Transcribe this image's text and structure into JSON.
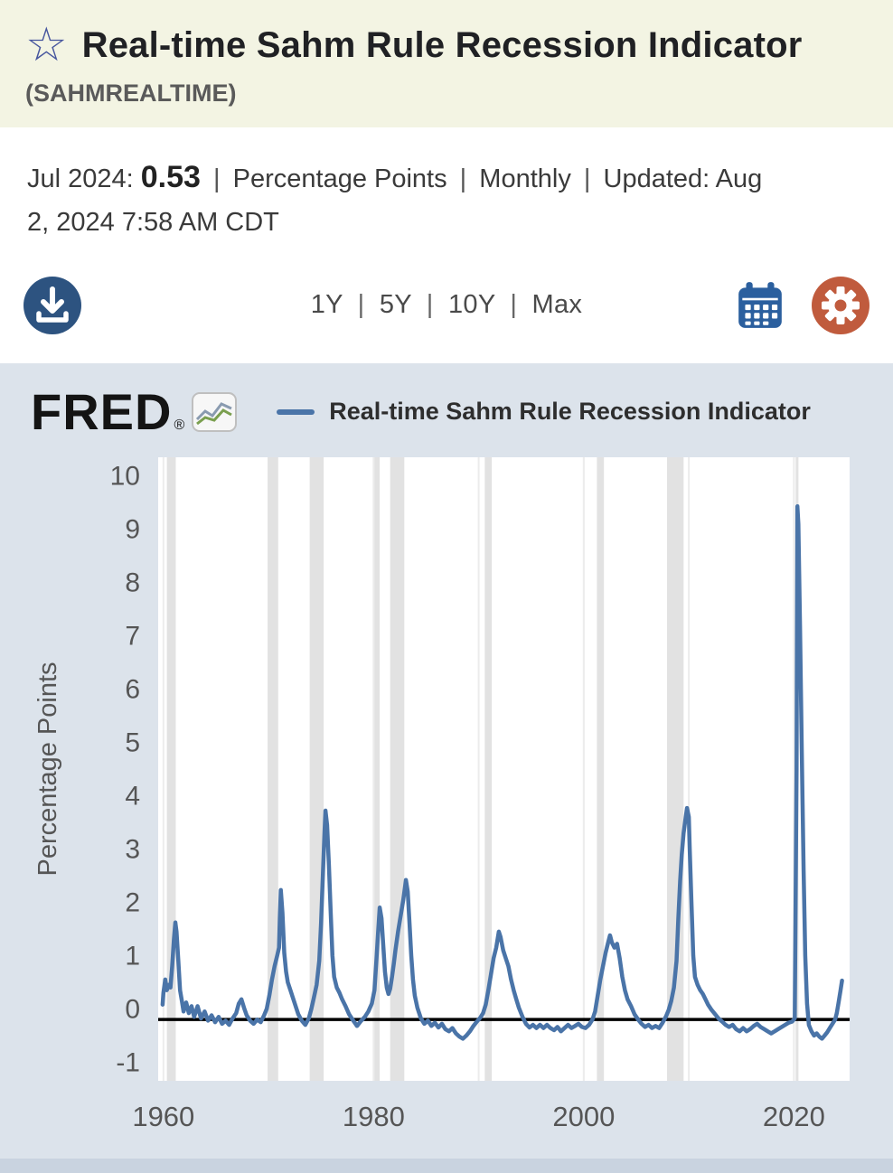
{
  "header": {
    "title": "Real-time Sahm Rule Recession Indicator",
    "series_id": "(SAHMREALTIME)"
  },
  "icons": {
    "favorite": "☆",
    "download": "download-arrow-into-tray",
    "calendar": "calendar-grid",
    "settings": "gear",
    "logo_chart": "zigzag-line-chart"
  },
  "observation": {
    "date_label": "Jul 2024:",
    "value": "0.53",
    "separator": "|",
    "units": "Percentage Points",
    "frequency": "Monthly",
    "updated_label": "Updated:",
    "updated_date": "Aug 2, 2024",
    "updated_time": "7:58 AM CDT"
  },
  "toolbar": {
    "ranges": [
      "1Y",
      "5Y",
      "10Y",
      "Max"
    ],
    "range_separator": "|"
  },
  "branding": {
    "logo_text": "FRED",
    "registered_mark": "®"
  },
  "colors": {
    "header_bg": "#f3f4e3",
    "chart_panel_bg": "#dce3eb",
    "line": "#4a74a8",
    "download_button": "#2d5380",
    "calendar_icon": "#2b5f9e",
    "settings_button": "#c05b3d",
    "recession_band": "#e2e2e2",
    "threshold_line": "#000000"
  },
  "chart_data": {
    "type": "line",
    "title": "Real-time Sahm Rule Recession Indicator",
    "ylabel": "Percentage Points",
    "xlabel": "",
    "x_ticks": [
      1960,
      1980,
      2000,
      2020
    ],
    "x_gridlines": [
      1960,
      1970,
      1980,
      1990,
      2000,
      2010,
      2020
    ],
    "y_ticks": [
      10,
      9,
      8,
      7,
      6,
      5,
      4,
      3,
      2,
      1,
      0,
      -1
    ],
    "xlim": [
      1959.5,
      2025.3
    ],
    "ylim": [
      -1.35,
      10.35
    ],
    "grid": "vertical-only",
    "legend_position": "top",
    "threshold_line": -0.2,
    "plot_bg": "#ffffff",
    "recession_color": "#e2e2e2",
    "gridline_color": "#ececec",
    "recessions": [
      [
        1960.33,
        1961.17
      ],
      [
        1969.92,
        1970.92
      ],
      [
        1973.92,
        1975.25
      ],
      [
        1980.08,
        1980.58
      ],
      [
        1981.58,
        1982.92
      ],
      [
        1990.58,
        1991.25
      ],
      [
        2001.25,
        2001.92
      ],
      [
        2007.92,
        2009.5
      ],
      [
        2020.17,
        2020.42
      ]
    ],
    "series": [
      {
        "name": "Real-time Sahm Rule Recession Indicator",
        "color": "#4a74a8",
        "latest_label": "Jul 2024",
        "latest_value": 0.53,
        "points": [
          [
            1959.92,
            0.08
          ],
          [
            1960.0,
            0.3
          ],
          [
            1960.17,
            0.55
          ],
          [
            1960.33,
            0.35
          ],
          [
            1960.5,
            0.45
          ],
          [
            1960.67,
            0.4
          ],
          [
            1960.83,
            0.8
          ],
          [
            1961.0,
            1.3
          ],
          [
            1961.13,
            1.62
          ],
          [
            1961.25,
            1.45
          ],
          [
            1961.42,
            0.9
          ],
          [
            1961.58,
            0.35
          ],
          [
            1961.75,
            0.15
          ],
          [
            1961.92,
            -0.05
          ],
          [
            1962.17,
            0.12
          ],
          [
            1962.42,
            -0.08
          ],
          [
            1962.67,
            0.05
          ],
          [
            1962.92,
            -0.15
          ],
          [
            1963.25,
            0.05
          ],
          [
            1963.58,
            -0.18
          ],
          [
            1963.92,
            -0.05
          ],
          [
            1964.25,
            -0.22
          ],
          [
            1964.58,
            -0.12
          ],
          [
            1964.92,
            -0.25
          ],
          [
            1965.25,
            -0.15
          ],
          [
            1965.58,
            -0.28
          ],
          [
            1965.92,
            -0.22
          ],
          [
            1966.25,
            -0.3
          ],
          [
            1966.58,
            -0.18
          ],
          [
            1966.92,
            -0.08
          ],
          [
            1967.17,
            0.1
          ],
          [
            1967.42,
            0.18
          ],
          [
            1967.67,
            0.02
          ],
          [
            1967.92,
            -0.12
          ],
          [
            1968.25,
            -0.22
          ],
          [
            1968.58,
            -0.28
          ],
          [
            1968.92,
            -0.2
          ],
          [
            1969.25,
            -0.25
          ],
          [
            1969.58,
            -0.12
          ],
          [
            1969.83,
            0.0
          ],
          [
            1970.08,
            0.25
          ],
          [
            1970.33,
            0.55
          ],
          [
            1970.58,
            0.8
          ],
          [
            1970.83,
            1.0
          ],
          [
            1971.0,
            1.15
          ],
          [
            1971.08,
            1.7
          ],
          [
            1971.17,
            2.23
          ],
          [
            1971.33,
            1.8
          ],
          [
            1971.5,
            1.05
          ],
          [
            1971.67,
            0.7
          ],
          [
            1971.83,
            0.5
          ],
          [
            1972.08,
            0.35
          ],
          [
            1972.33,
            0.2
          ],
          [
            1972.58,
            0.05
          ],
          [
            1972.83,
            -0.1
          ],
          [
            1973.17,
            -0.22
          ],
          [
            1973.5,
            -0.3
          ],
          [
            1973.83,
            -0.18
          ],
          [
            1974.08,
            0.0
          ],
          [
            1974.33,
            0.22
          ],
          [
            1974.58,
            0.45
          ],
          [
            1974.83,
            0.9
          ],
          [
            1975.0,
            1.6
          ],
          [
            1975.17,
            2.5
          ],
          [
            1975.33,
            3.3
          ],
          [
            1975.42,
            3.72
          ],
          [
            1975.58,
            3.45
          ],
          [
            1975.75,
            2.7
          ],
          [
            1975.92,
            1.8
          ],
          [
            1976.08,
            1.0
          ],
          [
            1976.25,
            0.6
          ],
          [
            1976.5,
            0.4
          ],
          [
            1976.75,
            0.3
          ],
          [
            1977.0,
            0.18
          ],
          [
            1977.33,
            0.05
          ],
          [
            1977.67,
            -0.1
          ],
          [
            1978.0,
            -0.2
          ],
          [
            1978.42,
            -0.32
          ],
          [
            1978.83,
            -0.22
          ],
          [
            1979.17,
            -0.15
          ],
          [
            1979.5,
            -0.05
          ],
          [
            1979.83,
            0.1
          ],
          [
            1980.08,
            0.35
          ],
          [
            1980.25,
            0.85
          ],
          [
            1980.42,
            1.4
          ],
          [
            1980.58,
            1.9
          ],
          [
            1980.75,
            1.7
          ],
          [
            1980.92,
            1.2
          ],
          [
            1981.08,
            0.7
          ],
          [
            1981.25,
            0.4
          ],
          [
            1981.42,
            0.28
          ],
          [
            1981.58,
            0.38
          ],
          [
            1981.75,
            0.6
          ],
          [
            1981.92,
            0.85
          ],
          [
            1982.08,
            1.1
          ],
          [
            1982.33,
            1.45
          ],
          [
            1982.58,
            1.75
          ],
          [
            1982.83,
            2.05
          ],
          [
            1983.0,
            2.3
          ],
          [
            1983.08,
            2.42
          ],
          [
            1983.25,
            2.2
          ],
          [
            1983.42,
            1.6
          ],
          [
            1983.58,
            1.0
          ],
          [
            1983.75,
            0.55
          ],
          [
            1983.92,
            0.25
          ],
          [
            1984.17,
            0.02
          ],
          [
            1984.5,
            -0.18
          ],
          [
            1984.83,
            -0.28
          ],
          [
            1985.17,
            -0.22
          ],
          [
            1985.5,
            -0.32
          ],
          [
            1985.83,
            -0.26
          ],
          [
            1986.17,
            -0.35
          ],
          [
            1986.5,
            -0.28
          ],
          [
            1986.83,
            -0.38
          ],
          [
            1987.17,
            -0.42
          ],
          [
            1987.5,
            -0.36
          ],
          [
            1987.83,
            -0.46
          ],
          [
            1988.17,
            -0.52
          ],
          [
            1988.5,
            -0.56
          ],
          [
            1988.83,
            -0.5
          ],
          [
            1989.17,
            -0.42
          ],
          [
            1989.5,
            -0.32
          ],
          [
            1989.83,
            -0.24
          ],
          [
            1990.17,
            -0.16
          ],
          [
            1990.42,
            -0.08
          ],
          [
            1990.67,
            0.08
          ],
          [
            1990.92,
            0.35
          ],
          [
            1991.17,
            0.65
          ],
          [
            1991.42,
            0.95
          ],
          [
            1991.67,
            1.15
          ],
          [
            1991.92,
            1.45
          ],
          [
            1992.08,
            1.35
          ],
          [
            1992.33,
            1.1
          ],
          [
            1992.58,
            0.95
          ],
          [
            1992.83,
            0.8
          ],
          [
            1993.08,
            0.55
          ],
          [
            1993.33,
            0.35
          ],
          [
            1993.58,
            0.18
          ],
          [
            1993.83,
            0.02
          ],
          [
            1994.17,
            -0.15
          ],
          [
            1994.5,
            -0.28
          ],
          [
            1994.83,
            -0.35
          ],
          [
            1995.17,
            -0.3
          ],
          [
            1995.5,
            -0.36
          ],
          [
            1995.83,
            -0.3
          ],
          [
            1996.17,
            -0.36
          ],
          [
            1996.5,
            -0.3
          ],
          [
            1996.83,
            -0.36
          ],
          [
            1997.17,
            -0.4
          ],
          [
            1997.5,
            -0.34
          ],
          [
            1997.83,
            -0.42
          ],
          [
            1998.17,
            -0.36
          ],
          [
            1998.5,
            -0.3
          ],
          [
            1998.83,
            -0.36
          ],
          [
            1999.17,
            -0.32
          ],
          [
            1999.5,
            -0.28
          ],
          [
            1999.83,
            -0.34
          ],
          [
            2000.17,
            -0.36
          ],
          [
            2000.5,
            -0.3
          ],
          [
            2000.83,
            -0.2
          ],
          [
            2001.08,
            -0.05
          ],
          [
            2001.33,
            0.25
          ],
          [
            2001.58,
            0.55
          ],
          [
            2001.83,
            0.8
          ],
          [
            2002.08,
            1.05
          ],
          [
            2002.33,
            1.25
          ],
          [
            2002.5,
            1.38
          ],
          [
            2002.67,
            1.25
          ],
          [
            2002.92,
            1.15
          ],
          [
            2003.17,
            1.22
          ],
          [
            2003.42,
            0.95
          ],
          [
            2003.67,
            0.6
          ],
          [
            2003.92,
            0.35
          ],
          [
            2004.17,
            0.18
          ],
          [
            2004.5,
            0.05
          ],
          [
            2004.83,
            -0.1
          ],
          [
            2005.17,
            -0.2
          ],
          [
            2005.5,
            -0.28
          ],
          [
            2005.83,
            -0.34
          ],
          [
            2006.17,
            -0.3
          ],
          [
            2006.5,
            -0.36
          ],
          [
            2006.83,
            -0.32
          ],
          [
            2007.17,
            -0.36
          ],
          [
            2007.5,
            -0.26
          ],
          [
            2007.83,
            -0.14
          ],
          [
            2008.08,
            -0.02
          ],
          [
            2008.33,
            0.15
          ],
          [
            2008.58,
            0.4
          ],
          [
            2008.83,
            0.9
          ],
          [
            2009.0,
            1.7
          ],
          [
            2009.17,
            2.4
          ],
          [
            2009.33,
            2.9
          ],
          [
            2009.5,
            3.3
          ],
          [
            2009.67,
            3.55
          ],
          [
            2009.83,
            3.77
          ],
          [
            2010.0,
            3.6
          ],
          [
            2010.08,
            3.0
          ],
          [
            2010.25,
            2.0
          ],
          [
            2010.42,
            1.0
          ],
          [
            2010.58,
            0.6
          ],
          [
            2010.83,
            0.45
          ],
          [
            2011.08,
            0.35
          ],
          [
            2011.33,
            0.28
          ],
          [
            2011.58,
            0.18
          ],
          [
            2011.83,
            0.08
          ],
          [
            2012.17,
            -0.02
          ],
          [
            2012.5,
            -0.1
          ],
          [
            2012.83,
            -0.18
          ],
          [
            2013.17,
            -0.24
          ],
          [
            2013.5,
            -0.3
          ],
          [
            2013.83,
            -0.34
          ],
          [
            2014.17,
            -0.3
          ],
          [
            2014.5,
            -0.38
          ],
          [
            2014.83,
            -0.42
          ],
          [
            2015.17,
            -0.36
          ],
          [
            2015.5,
            -0.42
          ],
          [
            2015.83,
            -0.38
          ],
          [
            2016.17,
            -0.32
          ],
          [
            2016.5,
            -0.28
          ],
          [
            2016.83,
            -0.34
          ],
          [
            2017.17,
            -0.38
          ],
          [
            2017.5,
            -0.42
          ],
          [
            2017.83,
            -0.46
          ],
          [
            2018.17,
            -0.42
          ],
          [
            2018.5,
            -0.38
          ],
          [
            2018.83,
            -0.34
          ],
          [
            2019.17,
            -0.3
          ],
          [
            2019.5,
            -0.26
          ],
          [
            2019.83,
            -0.24
          ],
          [
            2020.08,
            -0.18
          ],
          [
            2020.25,
            4.5
          ],
          [
            2020.33,
            9.43
          ],
          [
            2020.42,
            9.1
          ],
          [
            2020.58,
            7.2
          ],
          [
            2020.75,
            4.8
          ],
          [
            2020.92,
            2.6
          ],
          [
            2021.08,
            1.0
          ],
          [
            2021.25,
            0.1
          ],
          [
            2021.42,
            -0.3
          ],
          [
            2021.67,
            -0.42
          ],
          [
            2021.92,
            -0.5
          ],
          [
            2022.17,
            -0.46
          ],
          [
            2022.42,
            -0.52
          ],
          [
            2022.67,
            -0.56
          ],
          [
            2022.92,
            -0.5
          ],
          [
            2023.17,
            -0.44
          ],
          [
            2023.42,
            -0.36
          ],
          [
            2023.67,
            -0.28
          ],
          [
            2023.92,
            -0.2
          ],
          [
            2024.08,
            -0.08
          ],
          [
            2024.25,
            0.12
          ],
          [
            2024.42,
            0.33
          ],
          [
            2024.58,
            0.53
          ]
        ]
      }
    ]
  }
}
